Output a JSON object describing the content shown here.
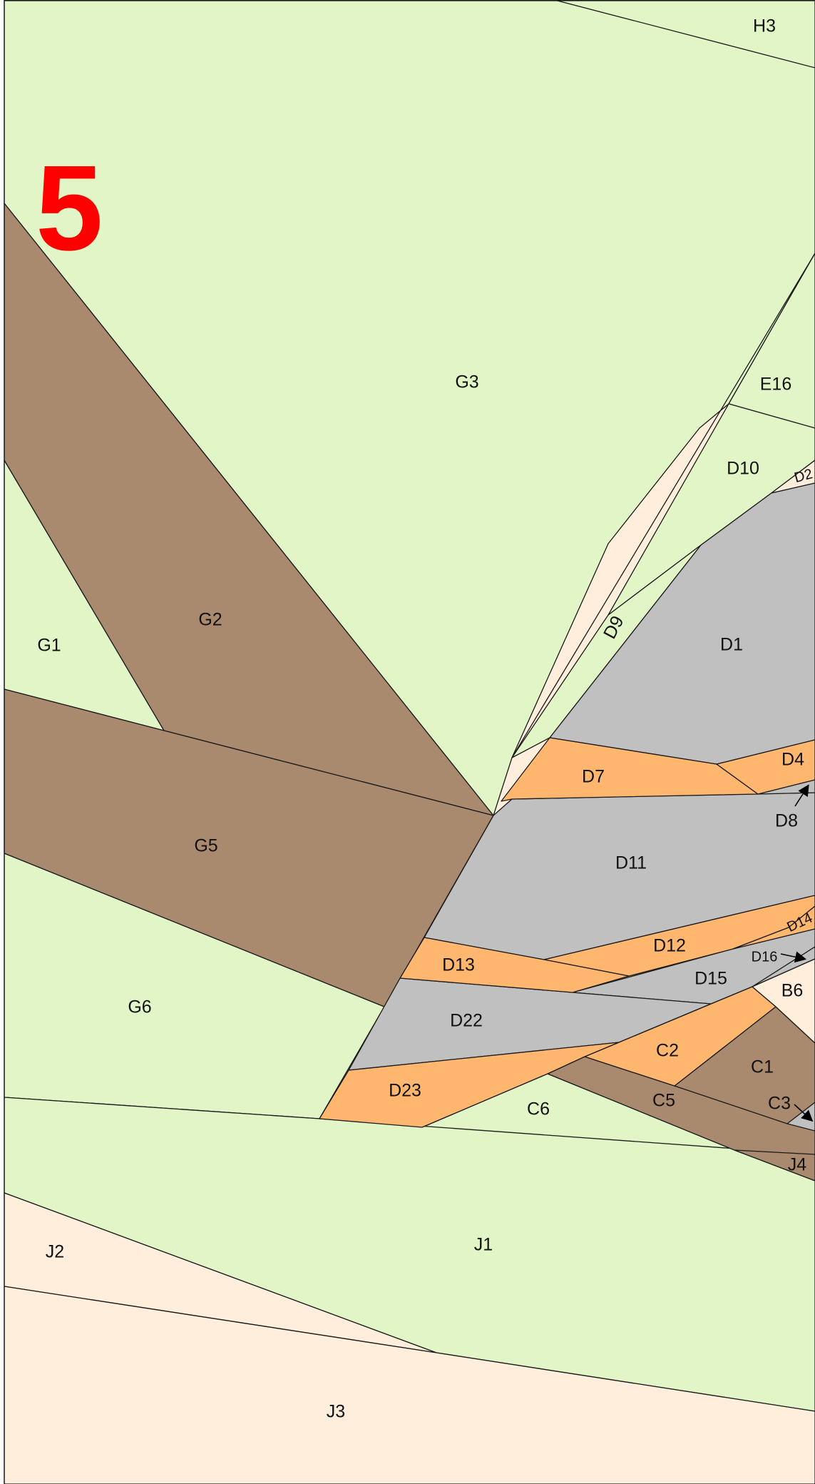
{
  "page_number": "5",
  "colors": {
    "light_green": "#e2f5c7",
    "brown": "#a98a6e",
    "gray": "#c0c0c0",
    "orange": "#ffb66f",
    "cream": "#ffeedb",
    "page_number_red": "#ff0000"
  },
  "pieces": {
    "H3": "H3",
    "G3": "G3",
    "E16": "E16",
    "D10": "D10",
    "D2": "D2",
    "G2": "G2",
    "G1": "G1",
    "D9": "D9",
    "D1": "D1",
    "D4": "D4",
    "D7": "D7",
    "D8": "D8",
    "G5": "G5",
    "D11": "D11",
    "D14": "D14",
    "D12": "D12",
    "D16": "D16",
    "D13": "D13",
    "D15": "D15",
    "B6": "B6",
    "G6": "G6",
    "D22": "D22",
    "C2": "C2",
    "C1": "C1",
    "D23": "D23",
    "C6": "C6",
    "C5": "C5",
    "C3": "C3",
    "J4": "J4",
    "J1": "J1",
    "J2": "J2",
    "J3": "J3"
  }
}
